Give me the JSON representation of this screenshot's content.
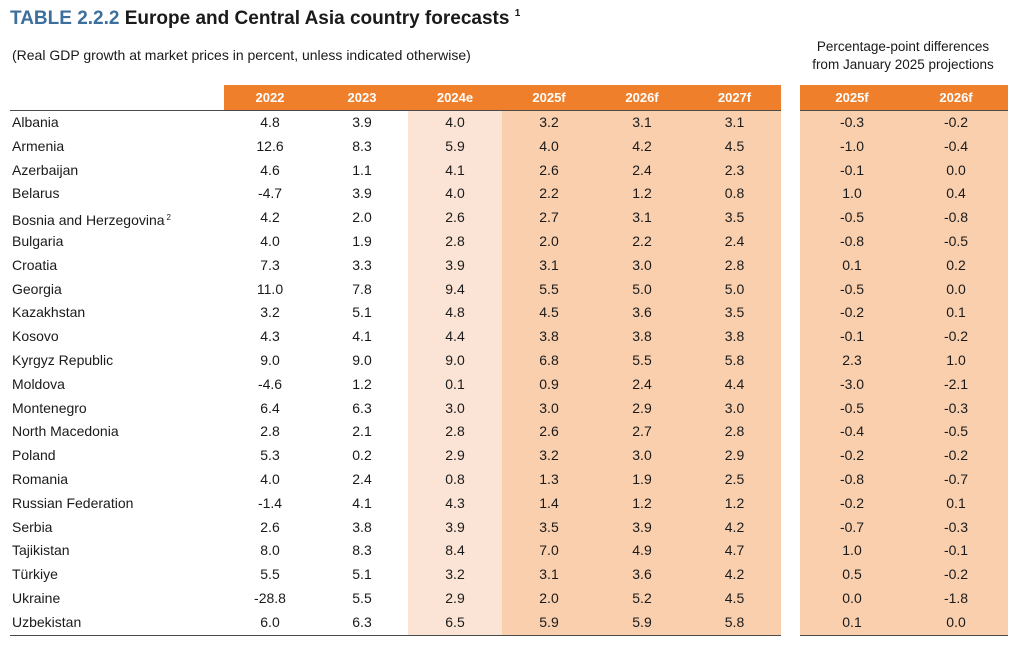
{
  "title": {
    "tag": "TABLE 2.2.2",
    "text": "Europe and Central Asia country forecasts",
    "footnote": "1"
  },
  "subtitle": "(Real GDP growth at market prices in percent, unless indicated otherwise)",
  "diff_note": {
    "line1": "Percentage-point differences",
    "line2": "from January 2025 projections"
  },
  "columns": [
    "2022",
    "2023",
    "2024e",
    "2025f",
    "2026f",
    "2027f"
  ],
  "diff_columns": [
    "2025f",
    "2026f"
  ],
  "rows": [
    {
      "country": "Albania",
      "note": "",
      "values": [
        "4.8",
        "3.9",
        "4.0",
        "3.2",
        "3.1",
        "3.1"
      ],
      "diffs": [
        "-0.3",
        "-0.2"
      ]
    },
    {
      "country": "Armenia",
      "note": "",
      "values": [
        "12.6",
        "8.3",
        "5.9",
        "4.0",
        "4.2",
        "4.5"
      ],
      "diffs": [
        "-1.0",
        "-0.4"
      ]
    },
    {
      "country": "Azerbaijan",
      "note": "",
      "values": [
        "4.6",
        "1.1",
        "4.1",
        "2.6",
        "2.4",
        "2.3"
      ],
      "diffs": [
        "-0.1",
        "0.0"
      ]
    },
    {
      "country": "Belarus",
      "note": "",
      "values": [
        "-4.7",
        "3.9",
        "4.0",
        "2.2",
        "1.2",
        "0.8"
      ],
      "diffs": [
        "1.0",
        "0.4"
      ]
    },
    {
      "country": "Bosnia and Herzegovina",
      "note": "2",
      "values": [
        "4.2",
        "2.0",
        "2.6",
        "2.7",
        "3.1",
        "3.5"
      ],
      "diffs": [
        "-0.5",
        "-0.8"
      ]
    },
    {
      "country": "Bulgaria",
      "note": "",
      "values": [
        "4.0",
        "1.9",
        "2.8",
        "2.0",
        "2.2",
        "2.4"
      ],
      "diffs": [
        "-0.8",
        "-0.5"
      ]
    },
    {
      "country": "Croatia",
      "note": "",
      "values": [
        "7.3",
        "3.3",
        "3.9",
        "3.1",
        "3.0",
        "2.8"
      ],
      "diffs": [
        "0.1",
        "0.2"
      ]
    },
    {
      "country": "Georgia",
      "note": "",
      "values": [
        "11.0",
        "7.8",
        "9.4",
        "5.5",
        "5.0",
        "5.0"
      ],
      "diffs": [
        "-0.5",
        "0.0"
      ]
    },
    {
      "country": "Kazakhstan",
      "note": "",
      "values": [
        "3.2",
        "5.1",
        "4.8",
        "4.5",
        "3.6",
        "3.5"
      ],
      "diffs": [
        "-0.2",
        "0.1"
      ]
    },
    {
      "country": "Kosovo",
      "note": "",
      "values": [
        "4.3",
        "4.1",
        "4.4",
        "3.8",
        "3.8",
        "3.8"
      ],
      "diffs": [
        "-0.1",
        "-0.2"
      ]
    },
    {
      "country": "Kyrgyz Republic",
      "note": "",
      "values": [
        "9.0",
        "9.0",
        "9.0",
        "6.8",
        "5.5",
        "5.8"
      ],
      "diffs": [
        "2.3",
        "1.0"
      ]
    },
    {
      "country": "Moldova",
      "note": "",
      "values": [
        "-4.6",
        "1.2",
        "0.1",
        "0.9",
        "2.4",
        "4.4"
      ],
      "diffs": [
        "-3.0",
        "-2.1"
      ]
    },
    {
      "country": "Montenegro",
      "note": "",
      "values": [
        "6.4",
        "6.3",
        "3.0",
        "3.0",
        "2.9",
        "3.0"
      ],
      "diffs": [
        "-0.5",
        "-0.3"
      ]
    },
    {
      "country": "North Macedonia",
      "note": "",
      "values": [
        "2.8",
        "2.1",
        "2.8",
        "2.6",
        "2.7",
        "2.8"
      ],
      "diffs": [
        "-0.4",
        "-0.5"
      ]
    },
    {
      "country": "Poland",
      "note": "",
      "values": [
        "5.3",
        "0.2",
        "2.9",
        "3.2",
        "3.0",
        "2.9"
      ],
      "diffs": [
        "-0.2",
        "-0.2"
      ]
    },
    {
      "country": "Romania",
      "note": "",
      "values": [
        "4.0",
        "2.4",
        "0.8",
        "1.3",
        "1.9",
        "2.5"
      ],
      "diffs": [
        "-0.8",
        "-0.7"
      ]
    },
    {
      "country": "Russian Federation",
      "note": "",
      "values": [
        "-1.4",
        "4.1",
        "4.3",
        "1.4",
        "1.2",
        "1.2"
      ],
      "diffs": [
        "-0.2",
        "0.1"
      ]
    },
    {
      "country": "Serbia",
      "note": "",
      "values": [
        "2.6",
        "3.8",
        "3.9",
        "3.5",
        "3.9",
        "4.2"
      ],
      "diffs": [
        "-0.7",
        "-0.3"
      ]
    },
    {
      "country": "Tajikistan",
      "note": "",
      "values": [
        "8.0",
        "8.3",
        "8.4",
        "7.0",
        "4.9",
        "4.7"
      ],
      "diffs": [
        "1.0",
        "-0.1"
      ]
    },
    {
      "country": "Türkiye",
      "note": "",
      "values": [
        "5.5",
        "5.1",
        "3.2",
        "3.1",
        "3.6",
        "4.2"
      ],
      "diffs": [
        "0.5",
        "-0.2"
      ]
    },
    {
      "country": "Ukraine",
      "note": "",
      "values": [
        "-28.8",
        "5.5",
        "2.9",
        "2.0",
        "5.2",
        "4.5"
      ],
      "diffs": [
        "0.0",
        "-1.8"
      ]
    },
    {
      "country": "Uzbekistan",
      "note": "",
      "values": [
        "6.0",
        "6.3",
        "6.5",
        "5.9",
        "5.9",
        "5.8"
      ],
      "diffs": [
        "0.1",
        "0.0"
      ]
    }
  ],
  "colors": {
    "header_orange": "#f07f2b",
    "forecast_shade": "#f9cfae",
    "estimate_shade": "#fbe4d5",
    "title_blue": "#3d6f9c"
  }
}
